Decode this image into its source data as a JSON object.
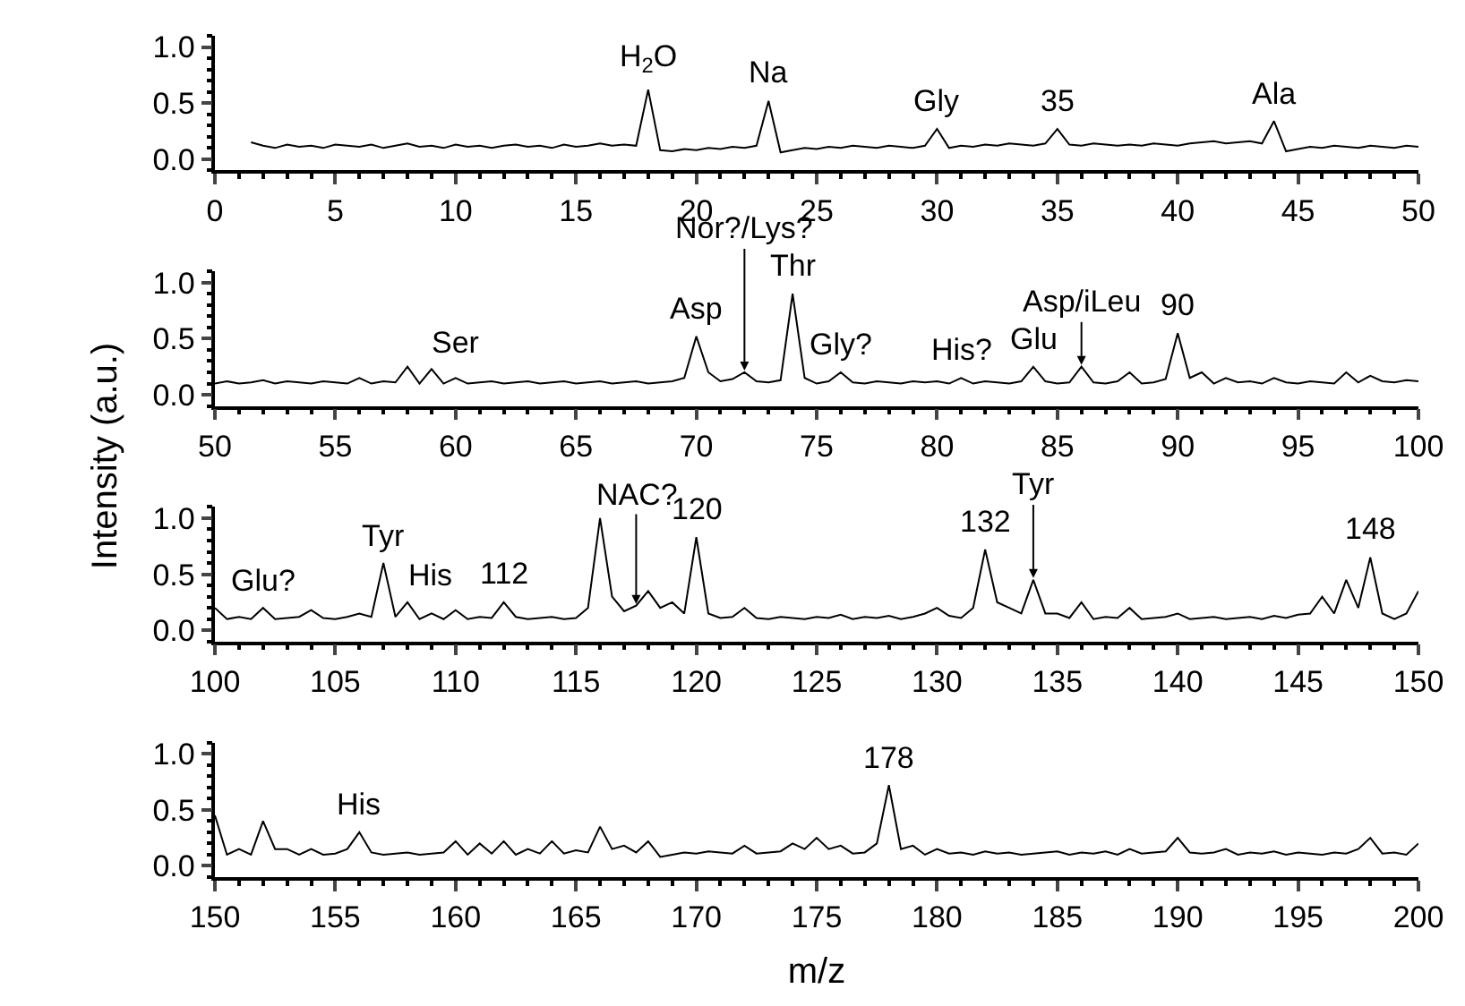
{
  "chart_data": [
    {
      "type": "line",
      "tick_labels": "xy",
      "marker": "none",
      "line_style": "solid",
      "xlim": [
        0,
        50
      ],
      "xticks": [
        0,
        5,
        10,
        15,
        20,
        25,
        30,
        35,
        40,
        45,
        50
      ],
      "ylim": [
        -0.1,
        1.1
      ],
      "yticks": [
        {
          "value": 0,
          "label": "0.0"
        },
        {
          "value": 0.5,
          "label": "0.5"
        },
        {
          "value": 1,
          "label": "1.0"
        }
      ],
      "series": [
        {
          "color": "#000000",
          "x": [
            1.5,
            2,
            2.5,
            3,
            3.5,
            4,
            4.5,
            5,
            5.5,
            6,
            6.5,
            7,
            7.5,
            8,
            8.5,
            9,
            9.5,
            10,
            10.5,
            11,
            11.5,
            12,
            12.5,
            13,
            13.5,
            14,
            14.5,
            15,
            15.5,
            16,
            16.5,
            17,
            17.5,
            18,
            18.5,
            19,
            19.5,
            20,
            20.5,
            21,
            21.5,
            22,
            22.5,
            23,
            23.5,
            24,
            24.5,
            25,
            25.5,
            26,
            26.5,
            27,
            27.5,
            28,
            28.5,
            29,
            29.5,
            30,
            30.5,
            31,
            31.5,
            32,
            32.5,
            33,
            33.5,
            34,
            34.5,
            35,
            35.5,
            36,
            36.5,
            37,
            37.5,
            38,
            38.5,
            39,
            39.5,
            40,
            40.5,
            41,
            41.5,
            42,
            42.5,
            43,
            43.5,
            44,
            44.5,
            45,
            45.5,
            46,
            46.5,
            47,
            47.5,
            48,
            48.5,
            49,
            49.5,
            50
          ],
          "values": [
            0.15,
            0.12,
            0.1,
            0.13,
            0.11,
            0.12,
            0.1,
            0.13,
            0.12,
            0.11,
            0.13,
            0.1,
            0.12,
            0.14,
            0.11,
            0.12,
            0.1,
            0.13,
            0.11,
            0.12,
            0.1,
            0.12,
            0.13,
            0.11,
            0.12,
            0.1,
            0.13,
            0.11,
            0.12,
            0.14,
            0.12,
            0.13,
            0.12,
            0.62,
            0.08,
            0.07,
            0.09,
            0.08,
            0.1,
            0.09,
            0.11,
            0.1,
            0.12,
            0.52,
            0.06,
            0.08,
            0.1,
            0.09,
            0.11,
            0.1,
            0.12,
            0.11,
            0.1,
            0.12,
            0.11,
            0.1,
            0.12,
            0.27,
            0.1,
            0.12,
            0.11,
            0.13,
            0.12,
            0.14,
            0.13,
            0.12,
            0.14,
            0.27,
            0.13,
            0.12,
            0.14,
            0.13,
            0.12,
            0.13,
            0.12,
            0.14,
            0.13,
            0.12,
            0.14,
            0.15,
            0.16,
            0.14,
            0.15,
            0.16,
            0.14,
            0.34,
            0.07,
            0.09,
            0.11,
            0.1,
            0.12,
            0.11,
            0.1,
            0.12,
            0.11,
            0.1,
            0.12,
            0.11
          ]
        }
      ],
      "annotations": [
        {
          "text": "H$_{2}$O",
          "x": 18,
          "y": 0.62
        },
        {
          "text": "Na",
          "x": 23,
          "y": 0.52
        },
        {
          "text": "Gly",
          "x": 30,
          "y": 0.27
        },
        {
          "text": "35",
          "x": 35,
          "y": 0.27
        },
        {
          "text": "Ala",
          "x": 44,
          "y": 0.34
        }
      ]
    },
    {
      "type": "line",
      "tick_labels": "xy",
      "marker": "none",
      "line_style": "solid",
      "ylabel": "Intensity (a.u.)",
      "xlim": [
        50,
        100
      ],
      "xticks": [
        50,
        55,
        60,
        65,
        70,
        75,
        80,
        85,
        90,
        95,
        100
      ],
      "ylim": [
        -0.1,
        1.1
      ],
      "yticks": [
        {
          "value": 0,
          "label": "0.0"
        },
        {
          "value": 0.5,
          "label": "0.5"
        },
        {
          "value": 1,
          "label": "1.0"
        }
      ],
      "series": [
        {
          "color": "#000000",
          "x": [
            50,
            50.5,
            51,
            51.5,
            52,
            52.5,
            53,
            53.5,
            54,
            54.5,
            55,
            55.5,
            56,
            56.5,
            57,
            57.5,
            58,
            58.5,
            59,
            59.5,
            60,
            60.5,
            61,
            61.5,
            62,
            62.5,
            63,
            63.5,
            64,
            64.5,
            65,
            65.5,
            66,
            66.5,
            67,
            67.5,
            68,
            68.5,
            69,
            69.5,
            70,
            70.5,
            71,
            71.5,
            72,
            72.5,
            73,
            73.5,
            74,
            74.5,
            75,
            75.5,
            76,
            76.5,
            77,
            77.5,
            78,
            78.5,
            79,
            79.5,
            80,
            80.5,
            81,
            81.5,
            82,
            82.5,
            83,
            83.5,
            84,
            84.5,
            85,
            85.5,
            86,
            86.5,
            87,
            87.5,
            88,
            88.5,
            89,
            89.5,
            90,
            90.5,
            91,
            91.5,
            92,
            92.5,
            93,
            93.5,
            94,
            94.5,
            95,
            95.5,
            96,
            96.5,
            97,
            97.5,
            98,
            98.5,
            99,
            99.5,
            100
          ],
          "values": [
            0.1,
            0.12,
            0.1,
            0.11,
            0.13,
            0.1,
            0.12,
            0.11,
            0.1,
            0.12,
            0.11,
            0.1,
            0.15,
            0.1,
            0.12,
            0.11,
            0.25,
            0.1,
            0.23,
            0.1,
            0.15,
            0.1,
            0.11,
            0.12,
            0.1,
            0.11,
            0.12,
            0.1,
            0.11,
            0.12,
            0.1,
            0.11,
            0.12,
            0.1,
            0.11,
            0.12,
            0.1,
            0.11,
            0.12,
            0.15,
            0.52,
            0.2,
            0.12,
            0.14,
            0.2,
            0.12,
            0.11,
            0.13,
            0.9,
            0.15,
            0.1,
            0.12,
            0.2,
            0.11,
            0.1,
            0.12,
            0.11,
            0.1,
            0.12,
            0.11,
            0.12,
            0.1,
            0.15,
            0.1,
            0.12,
            0.11,
            0.1,
            0.12,
            0.25,
            0.12,
            0.1,
            0.11,
            0.25,
            0.11,
            0.1,
            0.12,
            0.2,
            0.1,
            0.11,
            0.14,
            0.55,
            0.15,
            0.2,
            0.1,
            0.15,
            0.11,
            0.12,
            0.1,
            0.15,
            0.11,
            0.1,
            0.12,
            0.11,
            0.1,
            0.2,
            0.11,
            0.17,
            0.12,
            0.11,
            0.13,
            0.12
          ]
        }
      ],
      "annotations": [
        {
          "text": "Ser",
          "x": 60,
          "y": 0.15
        },
        {
          "text": "Asp",
          "x": 70,
          "y": 0.52
        },
        {
          "text": "Nor?/Lys?",
          "x": 72,
          "y": 0.2
        },
        {
          "text": "Thr",
          "x": 74,
          "y": 0.9
        },
        {
          "text": "Gly?",
          "x": 76,
          "y": 0.2
        },
        {
          "text": "His?",
          "x": 81,
          "y": 0.15
        },
        {
          "text": "Glu",
          "x": 84,
          "y": 0.25
        },
        {
          "text": "Asp/iLeu",
          "x": 86,
          "y": 0.25
        },
        {
          "text": "90",
          "x": 90,
          "y": 0.55
        }
      ]
    },
    {
      "type": "line",
      "tick_labels": "xy",
      "marker": "none",
      "line_style": "solid",
      "xlim": [
        100,
        150
      ],
      "xticks": [
        100,
        105,
        110,
        115,
        120,
        125,
        130,
        135,
        140,
        145,
        150
      ],
      "ylim": [
        -0.1,
        1.1
      ],
      "yticks": [
        {
          "value": 0,
          "label": "0.0"
        },
        {
          "value": 0.5,
          "label": "0.5"
        },
        {
          "value": 1,
          "label": "1.0"
        }
      ],
      "series": [
        {
          "color": "#000000",
          "x": [
            100,
            100.5,
            101,
            101.5,
            102,
            102.5,
            103,
            103.5,
            104,
            104.5,
            105,
            105.5,
            106,
            106.5,
            107,
            107.5,
            108,
            108.5,
            109,
            109.5,
            110,
            110.5,
            111,
            111.5,
            112,
            112.5,
            113,
            113.5,
            114,
            114.5,
            115,
            115.5,
            116,
            116.5,
            117,
            117.5,
            118,
            118.5,
            119,
            119.5,
            120,
            120.5,
            121,
            121.5,
            122,
            122.5,
            123,
            123.5,
            124,
            124.5,
            125,
            125.5,
            126,
            126.5,
            127,
            127.5,
            128,
            128.5,
            129,
            129.5,
            130,
            130.5,
            131,
            131.5,
            132,
            132.5,
            133,
            133.5,
            134,
            134.5,
            135,
            135.5,
            136,
            136.5,
            137,
            137.5,
            138,
            138.5,
            139,
            139.5,
            140,
            140.5,
            141,
            141.5,
            142,
            142.5,
            143,
            143.5,
            144,
            144.5,
            145,
            145.5,
            146,
            146.5,
            147,
            147.5,
            148,
            148.5,
            149,
            149.5,
            150
          ],
          "values": [
            0.2,
            0.1,
            0.12,
            0.1,
            0.2,
            0.1,
            0.11,
            0.12,
            0.18,
            0.11,
            0.1,
            0.12,
            0.15,
            0.12,
            0.6,
            0.12,
            0.25,
            0.1,
            0.15,
            0.1,
            0.18,
            0.1,
            0.12,
            0.11,
            0.25,
            0.12,
            0.1,
            0.11,
            0.12,
            0.1,
            0.11,
            0.2,
            1.0,
            0.3,
            0.17,
            0.22,
            0.35,
            0.2,
            0.25,
            0.15,
            0.83,
            0.15,
            0.11,
            0.12,
            0.2,
            0.11,
            0.1,
            0.12,
            0.11,
            0.1,
            0.12,
            0.11,
            0.14,
            0.1,
            0.12,
            0.11,
            0.13,
            0.1,
            0.12,
            0.15,
            0.2,
            0.13,
            0.11,
            0.2,
            0.72,
            0.25,
            0.2,
            0.15,
            0.45,
            0.15,
            0.15,
            0.11,
            0.25,
            0.1,
            0.12,
            0.11,
            0.2,
            0.1,
            0.11,
            0.12,
            0.15,
            0.1,
            0.11,
            0.12,
            0.1,
            0.11,
            0.12,
            0.1,
            0.13,
            0.11,
            0.14,
            0.15,
            0.3,
            0.15,
            0.45,
            0.2,
            0.65,
            0.15,
            0.1,
            0.15,
            0.35
          ]
        }
      ],
      "annotations": [
        {
          "text": "Glu?",
          "x": 102,
          "y": 0.2
        },
        {
          "text": "Tyr",
          "x": 107,
          "y": 0.6
        },
        {
          "text": "His",
          "x": 109,
          "y": 0.15
        },
        {
          "text": "112",
          "x": 112,
          "y": 0.25
        },
        {
          "text": "NAC?",
          "x": 117.5,
          "y": 0.22
        },
        {
          "text": "120",
          "x": 120,
          "y": 0.83
        },
        {
          "text": "132",
          "x": 132,
          "y": 0.72
        },
        {
          "text": "Tyr",
          "x": 134,
          "y": 0.45
        },
        {
          "text": "148",
          "x": 148,
          "y": 0.65
        }
      ]
    },
    {
      "type": "line",
      "tick_labels": "xy",
      "marker": "none",
      "line_style": "solid",
      "xlabel": "m/z",
      "xlim": [
        150,
        200
      ],
      "xticks": [
        150,
        155,
        160,
        165,
        170,
        175,
        180,
        185,
        190,
        195,
        200
      ],
      "ylim": [
        -0.1,
        1.1
      ],
      "yticks": [
        {
          "value": 0,
          "label": "0.0"
        },
        {
          "value": 0.5,
          "label": "0.5"
        },
        {
          "value": 1,
          "label": "1.0"
        }
      ],
      "series": [
        {
          "color": "#000000",
          "x": [
            150,
            150.5,
            151,
            151.5,
            152,
            152.5,
            153,
            153.5,
            154,
            154.5,
            155,
            155.5,
            156,
            156.5,
            157,
            157.5,
            158,
            158.5,
            159,
            159.5,
            160,
            160.5,
            161,
            161.5,
            162,
            162.5,
            163,
            163.5,
            164,
            164.5,
            165,
            165.5,
            166,
            166.5,
            167,
            167.5,
            168,
            168.5,
            169,
            169.5,
            170,
            170.5,
            171,
            171.5,
            172,
            172.5,
            173,
            173.5,
            174,
            174.5,
            175,
            175.5,
            176,
            176.5,
            177,
            177.5,
            178,
            178.5,
            179,
            179.5,
            180,
            180.5,
            181,
            181.5,
            182,
            182.5,
            183,
            183.5,
            184,
            184.5,
            185,
            185.5,
            186,
            186.5,
            187,
            187.5,
            188,
            188.5,
            189,
            189.5,
            190,
            190.5,
            191,
            191.5,
            192,
            192.5,
            193,
            193.5,
            194,
            194.5,
            195,
            195.5,
            196,
            196.5,
            197,
            197.5,
            198,
            198.5,
            199,
            199.5,
            200
          ],
          "values": [
            0.45,
            0.1,
            0.15,
            0.1,
            0.4,
            0.15,
            0.15,
            0.1,
            0.15,
            0.1,
            0.11,
            0.15,
            0.3,
            0.12,
            0.1,
            0.11,
            0.12,
            0.1,
            0.11,
            0.12,
            0.22,
            0.1,
            0.2,
            0.11,
            0.22,
            0.1,
            0.15,
            0.11,
            0.22,
            0.11,
            0.14,
            0.12,
            0.35,
            0.15,
            0.18,
            0.12,
            0.22,
            0.08,
            0.1,
            0.12,
            0.11,
            0.13,
            0.12,
            0.11,
            0.18,
            0.11,
            0.12,
            0.13,
            0.2,
            0.15,
            0.25,
            0.15,
            0.18,
            0.11,
            0.12,
            0.2,
            0.72,
            0.15,
            0.18,
            0.1,
            0.15,
            0.11,
            0.12,
            0.1,
            0.13,
            0.11,
            0.12,
            0.1,
            0.11,
            0.12,
            0.13,
            0.1,
            0.12,
            0.11,
            0.13,
            0.1,
            0.15,
            0.11,
            0.12,
            0.13,
            0.25,
            0.12,
            0.11,
            0.12,
            0.15,
            0.1,
            0.12,
            0.11,
            0.13,
            0.1,
            0.12,
            0.11,
            0.1,
            0.12,
            0.11,
            0.15,
            0.25,
            0.11,
            0.12,
            0.1,
            0.2
          ]
        }
      ],
      "annotations": [
        {
          "text": "His",
          "x": 156,
          "y": 0.3
        },
        {
          "text": "178",
          "x": 178,
          "y": 0.72
        }
      ]
    }
  ]
}
